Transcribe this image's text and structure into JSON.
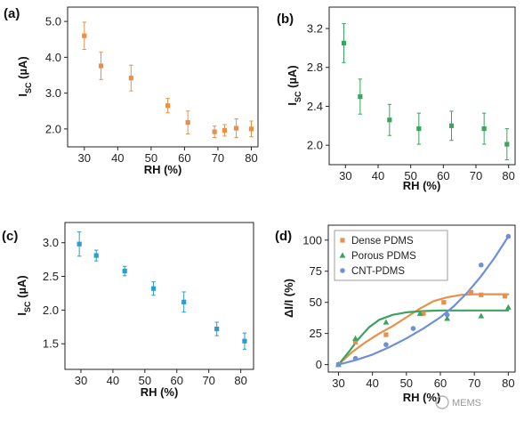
{
  "watermark": "MEMS",
  "chart_data": [
    {
      "panel": "(a)",
      "type": "scatter",
      "xlabel": "RH (%)",
      "ylabel_main": "I",
      "ylabel_sub": "SC",
      "ylabel_unit": "(µA)",
      "xlim": [
        25,
        82
      ],
      "ylim": [
        1.5,
        5.4
      ],
      "xticks": [
        30,
        40,
        50,
        60,
        70,
        80
      ],
      "yticks": [
        2.0,
        3.0,
        4.0,
        5.0
      ],
      "ytick_labels": [
        "2.0",
        "3.0",
        "4.0",
        "5.0"
      ],
      "color": "#e8904a",
      "marker": "square",
      "grid": false,
      "series": [
        {
          "x": [
            30,
            35,
            44,
            55,
            61,
            69,
            72,
            75.5,
            80
          ],
          "y": [
            4.6,
            3.76,
            3.42,
            2.65,
            2.18,
            1.92,
            1.96,
            2.02,
            2.0
          ],
          "err": [
            0.38,
            0.38,
            0.36,
            0.2,
            0.32,
            0.16,
            0.16,
            0.26,
            0.22
          ]
        }
      ]
    },
    {
      "panel": "(b)",
      "type": "scatter",
      "xlabel": "RH (%)",
      "ylabel_main": "I",
      "ylabel_sub": "SC",
      "ylabel_unit": "(µA)",
      "xlim": [
        25,
        82
      ],
      "ylim": [
        1.8,
        3.42
      ],
      "xticks": [
        30,
        40,
        50,
        60,
        70,
        80
      ],
      "yticks": [
        2.0,
        2.4,
        2.8,
        3.2
      ],
      "ytick_labels": [
        "2.0",
        "2.4",
        "2.8",
        "3.2"
      ],
      "color": "#3aa460",
      "marker": "square",
      "grid": false,
      "series": [
        {
          "x": [
            29.5,
            34.5,
            43.5,
            52.5,
            62.5,
            72.5,
            79.5
          ],
          "y": [
            3.05,
            2.5,
            2.26,
            2.17,
            2.2,
            2.17,
            2.01
          ],
          "err": [
            0.2,
            0.18,
            0.16,
            0.16,
            0.15,
            0.16,
            0.16
          ]
        }
      ]
    },
    {
      "panel": "(c)",
      "type": "scatter",
      "xlabel": "RH (%)",
      "ylabel_main": "I",
      "ylabel_sub": "SC",
      "ylabel_unit": "(µA)",
      "xlim": [
        25,
        84
      ],
      "ylim": [
        1.12,
        3.3
      ],
      "xticks": [
        30,
        40,
        50,
        60,
        70,
        80
      ],
      "yticks": [
        1.5,
        2.0,
        2.5,
        3.0
      ],
      "ytick_labels": [
        "1.5",
        "2.0",
        "2.5",
        "3.0"
      ],
      "color": "#2e9ccc",
      "marker": "square",
      "grid": false,
      "series": [
        {
          "x": [
            29.5,
            34.8,
            43.7,
            52.7,
            62.2,
            72.5,
            81.2
          ],
          "y": [
            2.98,
            2.81,
            2.58,
            2.32,
            2.12,
            1.72,
            1.54
          ],
          "err": [
            0.18,
            0.08,
            0.07,
            0.1,
            0.15,
            0.1,
            0.12
          ]
        }
      ]
    },
    {
      "panel": "(d)",
      "type": "scatter",
      "xlabel": "RH (%)",
      "ylabel": "ΔI/I (%)",
      "xlim": [
        27,
        82
      ],
      "ylim": [
        -6,
        112
      ],
      "xticks": [
        30,
        40,
        50,
        60,
        70,
        80
      ],
      "yticks": [
        0,
        25,
        50,
        75,
        100
      ],
      "ytick_labels": [
        "0",
        "25",
        "50",
        "75",
        "100"
      ],
      "grid": false,
      "legend_position": "top-left",
      "series": [
        {
          "name": "Dense PDMS",
          "color": "#e8904a",
          "marker": "square",
          "x": [
            30,
            35,
            44,
            55,
            61,
            69,
            72,
            79
          ],
          "y": [
            0,
            18,
            24,
            41,
            50,
            58,
            56,
            55
          ],
          "fit": {
            "x": [
              30,
              34,
              38,
              42,
              46,
              50,
              54,
              58,
              62,
              66,
              70,
              74,
              78,
              80
            ],
            "y": [
              0,
              10,
              18,
              25,
              31,
              38,
              45,
              51,
              54,
              56,
              56.5,
              56.5,
              56.5,
              56.5
            ]
          }
        },
        {
          "name": "Porous PDMS",
          "color": "#3aa460",
          "marker": "triangle",
          "x": [
            30,
            35,
            44,
            54,
            62,
            72,
            80
          ],
          "y": [
            0,
            21,
            34,
            41,
            37,
            39,
            46
          ],
          "fit": {
            "x": [
              30,
              33,
              36,
              39,
              42,
              46,
              50,
              55,
              60,
              70,
              80
            ],
            "y": [
              0,
              10,
              21,
              30,
              36,
              40,
              42,
              43,
              43.5,
              43.5,
              43.5
            ]
          }
        },
        {
          "name": "CNT-PDMS",
          "color": "#6f90d6",
          "marker": "circle",
          "x": [
            30,
            35,
            44,
            52,
            62,
            72,
            80
          ],
          "y": [
            0,
            5,
            16,
            29,
            40,
            80,
            103
          ],
          "fit": {
            "x": [
              30,
              35,
              40,
              45,
              50,
              55,
              60,
              64,
              68,
              72,
              76,
              80
            ],
            "y": [
              0,
              3.5,
              8,
              14,
              21,
              29,
              38,
              47,
              58,
              71,
              86,
              103
            ]
          }
        }
      ]
    }
  ]
}
